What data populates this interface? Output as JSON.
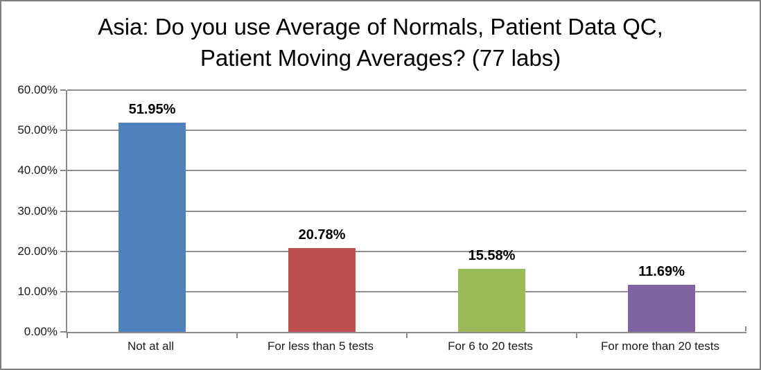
{
  "frame": {
    "border_color": "#7f7f7f",
    "background": "#ffffff"
  },
  "chart_data": {
    "type": "bar",
    "title": "Asia: Do you use Average of Normals, Patient Data QC, Patient Moving Averages? (77 labs)",
    "categories": [
      "Not at all",
      "For less than 5 tests",
      "For 6 to 20 tests",
      "For more than 20 tests"
    ],
    "values": [
      51.95,
      20.78,
      15.58,
      11.69
    ],
    "value_labels": [
      "51.95%",
      "20.78%",
      "15.58%",
      "11.69%"
    ],
    "bar_colors": [
      "#4f81bd",
      "#c0504d",
      "#9bbb59",
      "#8064a2"
    ],
    "ylim": [
      0,
      60
    ],
    "ytick_step": 10,
    "ytick_labels": [
      "0.00%",
      "10.00%",
      "20.00%",
      "30.00%",
      "40.00%",
      "50.00%",
      "60.00%"
    ],
    "grid": true,
    "legend": "none",
    "xlabel": "",
    "ylabel": ""
  },
  "colors": {
    "axis": "#8a8a8a",
    "gridline": "#8f8f8f",
    "title_text": "#000000",
    "tick_text": "#1a1a1a",
    "value_text": "#000000"
  }
}
